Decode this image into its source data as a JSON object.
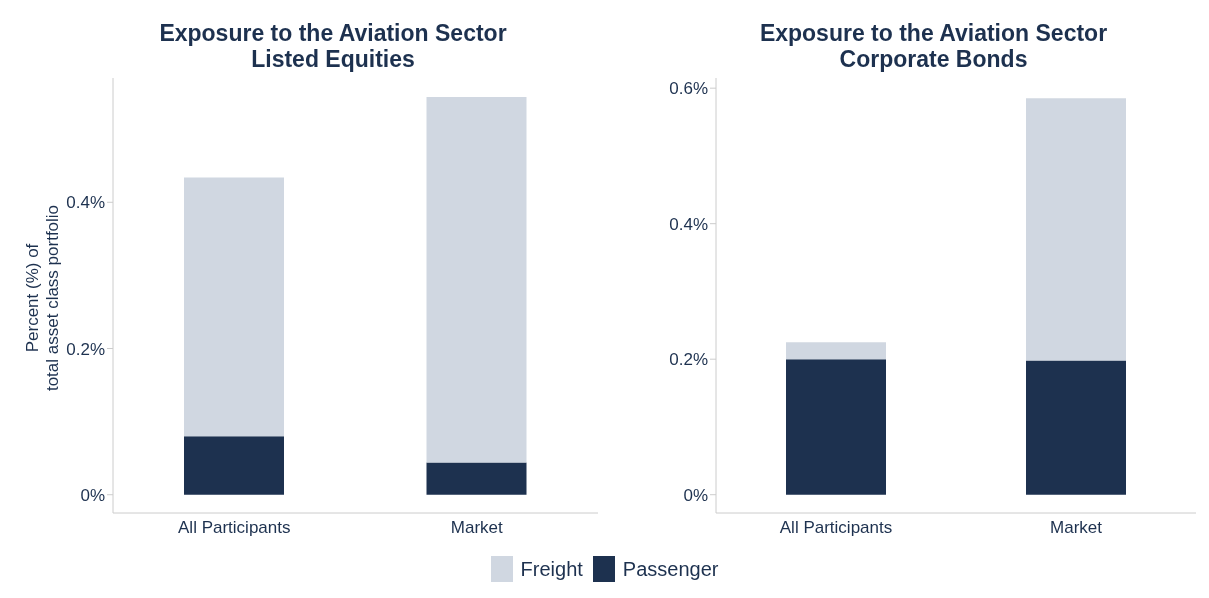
{
  "chart_data": [
    {
      "type": "bar",
      "title": "Exposure to the Aviation Sector\nListed Equities",
      "ylabel": "Percent (%) of\ntotal asset class portfolio",
      "categories": [
        "All Participants",
        "Market"
      ],
      "stacked": true,
      "legend": "bottom",
      "grid": false,
      "series": [
        {
          "name": "Passenger",
          "color": "#1d314f",
          "values": [
            0.08,
            0.044
          ]
        },
        {
          "name": "Freight",
          "color": "#d0d7e1",
          "values": [
            0.354,
            0.5
          ]
        }
      ],
      "ylim": [
        -0.025,
        0.57
      ],
      "yticks": [
        {
          "value": 0,
          "label": "0%"
        },
        {
          "value": 0.2,
          "label": "0.2%"
        },
        {
          "value": 0.4,
          "label": "0.4%"
        }
      ]
    },
    {
      "type": "bar",
      "title": "Exposure to the Aviation Sector\nCorporate Bonds",
      "categories": [
        "All Participants",
        "Market"
      ],
      "stacked": true,
      "grid": false,
      "series": [
        {
          "color": "#1d314f",
          "values": [
            0.2,
            0.198
          ]
        },
        {
          "color": "#d0d7e1",
          "values": [
            0.025,
            0.387
          ]
        }
      ],
      "ylim": [
        -0.027,
        0.615
      ],
      "yticks": [
        {
          "value": 0,
          "label": "0%"
        },
        {
          "value": 0.2,
          "label": "0.2%"
        },
        {
          "value": 0.4,
          "label": "0.4%"
        },
        {
          "value": 0.6,
          "label": "0.6%"
        }
      ]
    }
  ]
}
